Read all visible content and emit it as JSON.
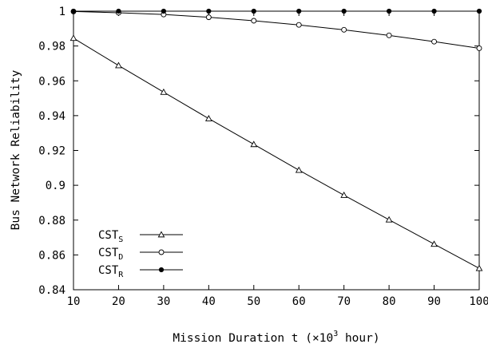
{
  "chart_data": {
    "type": "line",
    "xlabel_prefix": "Mission Duration t (×10",
    "xlabel_sup": "3",
    "xlabel_suffix": " hour)",
    "ylabel": "Bus Network Reliability",
    "xlim": [
      10,
      100
    ],
    "ylim": [
      0.84,
      1.0
    ],
    "x_ticks": [
      "10",
      "20",
      "30",
      "40",
      "50",
      "60",
      "70",
      "80",
      "90",
      "100"
    ],
    "y_ticks": [
      "0.84",
      "0.86",
      "0.88",
      "0.9",
      "0.92",
      "0.94",
      "0.96",
      "0.98",
      "1"
    ],
    "x": [
      10,
      20,
      30,
      40,
      50,
      60,
      70,
      80,
      90,
      100
    ],
    "grid": false,
    "legend_position": "bottom-left",
    "series": [
      {
        "name": "CST_S",
        "name_base": "CST",
        "name_sub": "S",
        "marker": "triangle",
        "values": [
          0.9845,
          0.9688,
          0.9535,
          0.9383,
          0.9235,
          0.9087,
          0.8943,
          0.8802,
          0.8662,
          0.8523
        ]
      },
      {
        "name": "CST_D",
        "name_base": "CST",
        "name_sub": "D",
        "marker": "circle-open",
        "values": [
          0.9998,
          0.9991,
          0.9981,
          0.9965,
          0.9945,
          0.9921,
          0.9893,
          0.9861,
          0.9825,
          0.9787
        ]
      },
      {
        "name": "CST_R",
        "name_base": "CST",
        "name_sub": "R",
        "marker": "circle-filled",
        "values": [
          1.0,
          1.0,
          1.0,
          1.0,
          1.0,
          1.0,
          1.0,
          1.0,
          1.0,
          1.0
        ]
      }
    ]
  }
}
